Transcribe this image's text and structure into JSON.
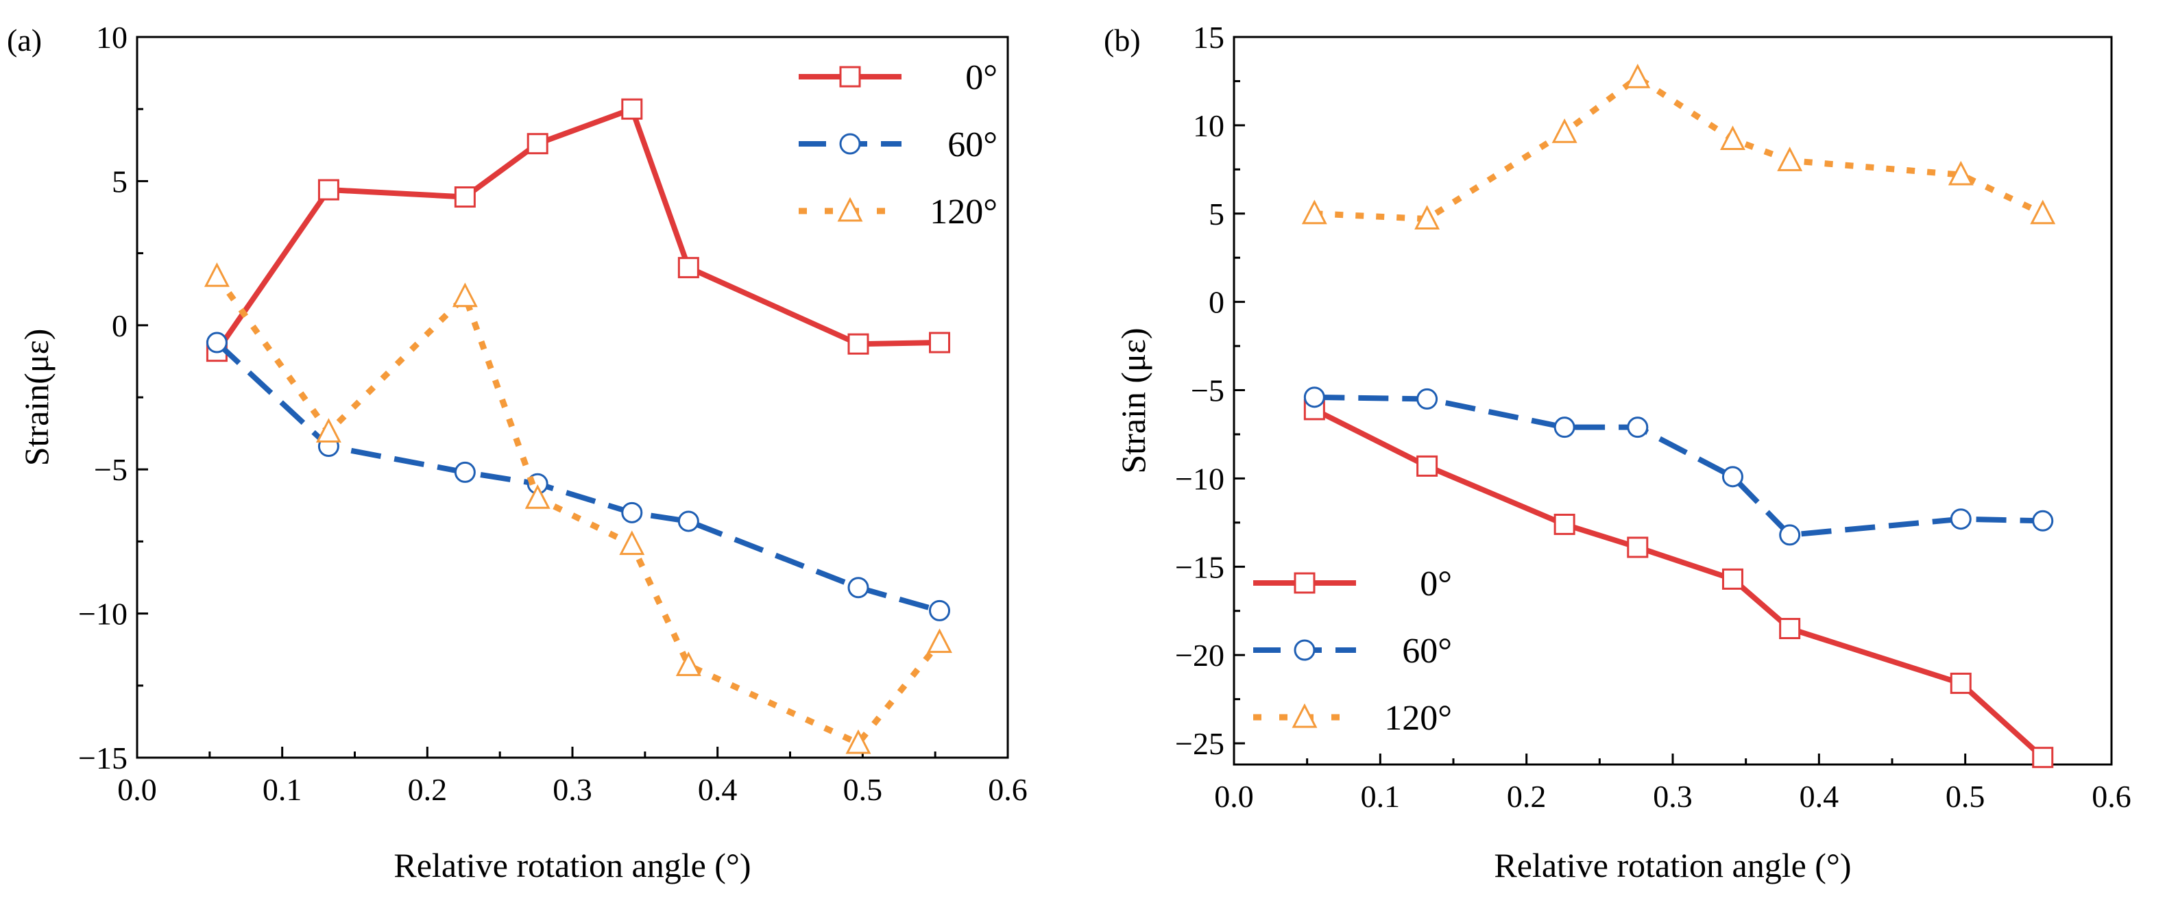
{
  "colors": {
    "s0": "#e03a3a",
    "s60": "#1f5fb4",
    "s120": "#f59a3a"
  },
  "chart_data": [
    {
      "type": "line",
      "panel_label": "(a)",
      "xlabel": "Relative rotation angle (°)",
      "ylabel": "Strain(με)",
      "xlim": [
        0,
        0.6
      ],
      "ylim": [
        -15,
        10
      ],
      "xticks": [
        0,
        0.1,
        0.2,
        0.3,
        0.4,
        0.5,
        0.6
      ],
      "xtick_labels": [
        "0.0",
        "0.1",
        "0.2",
        "0.3",
        "0.4",
        "0.5",
        "0.6"
      ],
      "yticks": [
        -15,
        -10,
        -5,
        0,
        5,
        10
      ],
      "ytick_labels": [
        "−15",
        "−10",
        "−5",
        "0",
        "5",
        "10"
      ],
      "legend": "top-right",
      "x": [
        0.055,
        0.132,
        0.226,
        0.276,
        0.341,
        0.38,
        0.497,
        0.553
      ],
      "series": [
        {
          "name": "0°",
          "style": "solid",
          "marker": "square",
          "values": [
            -0.9,
            4.7,
            4.45,
            6.3,
            7.5,
            2.0,
            -0.65,
            -0.6
          ]
        },
        {
          "name": "60°",
          "style": "dash",
          "marker": "circle",
          "values": [
            -0.6,
            -4.2,
            -5.1,
            -5.5,
            -6.5,
            -6.8,
            -9.1,
            -9.9
          ]
        },
        {
          "name": "120°",
          "style": "dot",
          "marker": "triangle",
          "values": [
            1.7,
            -3.7,
            1.0,
            -6.0,
            -7.6,
            -11.8,
            -14.5,
            -11.0
          ]
        }
      ]
    },
    {
      "type": "line",
      "panel_label": "(b)",
      "xlabel": "Relative rotation angle (°)",
      "ylabel": "Strain (με)",
      "xlim": [
        0,
        0.6
      ],
      "ylim": [
        -26.2,
        15
      ],
      "xticks": [
        0,
        0.1,
        0.2,
        0.3,
        0.4,
        0.5,
        0.6
      ],
      "xtick_labels": [
        "0.0",
        "0.1",
        "0.2",
        "0.3",
        "0.4",
        "0.5",
        "0.6"
      ],
      "yticks": [
        -25,
        -20,
        -15,
        -10,
        -5,
        0,
        5,
        10,
        15
      ],
      "ytick_labels": [
        "−25",
        "−20",
        "−15",
        "−10",
        "−5",
        "0",
        "5",
        "10",
        "15"
      ],
      "legend": "bottom-left",
      "x": [
        0.055,
        0.132,
        0.226,
        0.276,
        0.341,
        0.38,
        0.497,
        0.553
      ],
      "series": [
        {
          "name": "0°",
          "style": "solid",
          "marker": "square",
          "values": [
            -6.1,
            -9.3,
            -12.6,
            -13.9,
            -15.7,
            -18.5,
            -21.6,
            -25.8
          ]
        },
        {
          "name": "60°",
          "style": "dash",
          "marker": "circle",
          "values": [
            -5.4,
            -5.5,
            -7.1,
            -7.1,
            -9.9,
            -13.2,
            -12.3,
            -12.4
          ]
        },
        {
          "name": "120°",
          "style": "dot",
          "marker": "triangle",
          "values": [
            5.0,
            4.7,
            9.6,
            12.7,
            9.2,
            8.0,
            7.2,
            5.0
          ]
        }
      ]
    }
  ]
}
